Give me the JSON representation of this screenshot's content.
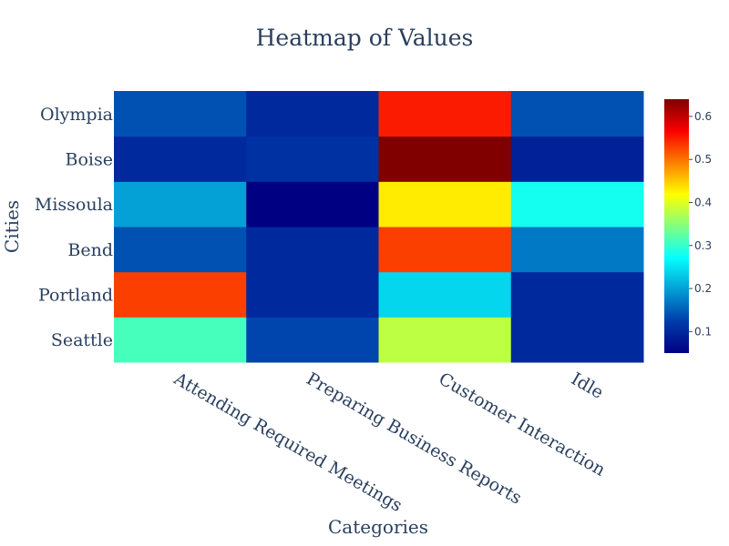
{
  "chart_data": {
    "type": "heatmap",
    "title": "Heatmap of Values",
    "xlabel": "Categories",
    "ylabel": "Cities",
    "x_categories": [
      "Attending Required Meetings",
      "Preparing Business Reports",
      "Customer Interaction",
      "Idle"
    ],
    "y_categories": [
      "Seattle",
      "Portland",
      "Bend",
      "Missoula",
      "Boise",
      "Olympia"
    ],
    "values": [
      [
        0.31,
        0.13,
        0.38,
        0.1
      ],
      [
        0.53,
        0.1,
        0.24,
        0.1
      ],
      [
        0.14,
        0.1,
        0.53,
        0.17
      ],
      [
        0.2,
        0.05,
        0.43,
        0.28
      ],
      [
        0.1,
        0.11,
        0.64,
        0.09
      ],
      [
        0.14,
        0.1,
        0.55,
        0.14
      ]
    ],
    "colorscale": "Jet",
    "zmin": 0.05,
    "zmax": 0.64,
    "colorbar_ticks": [
      0.1,
      0.2,
      0.3,
      0.4,
      0.5,
      0.6
    ],
    "colorbar_tick_labels": [
      "0.1",
      "0.2",
      "0.3",
      "0.4",
      "0.5",
      "0.6"
    ]
  }
}
